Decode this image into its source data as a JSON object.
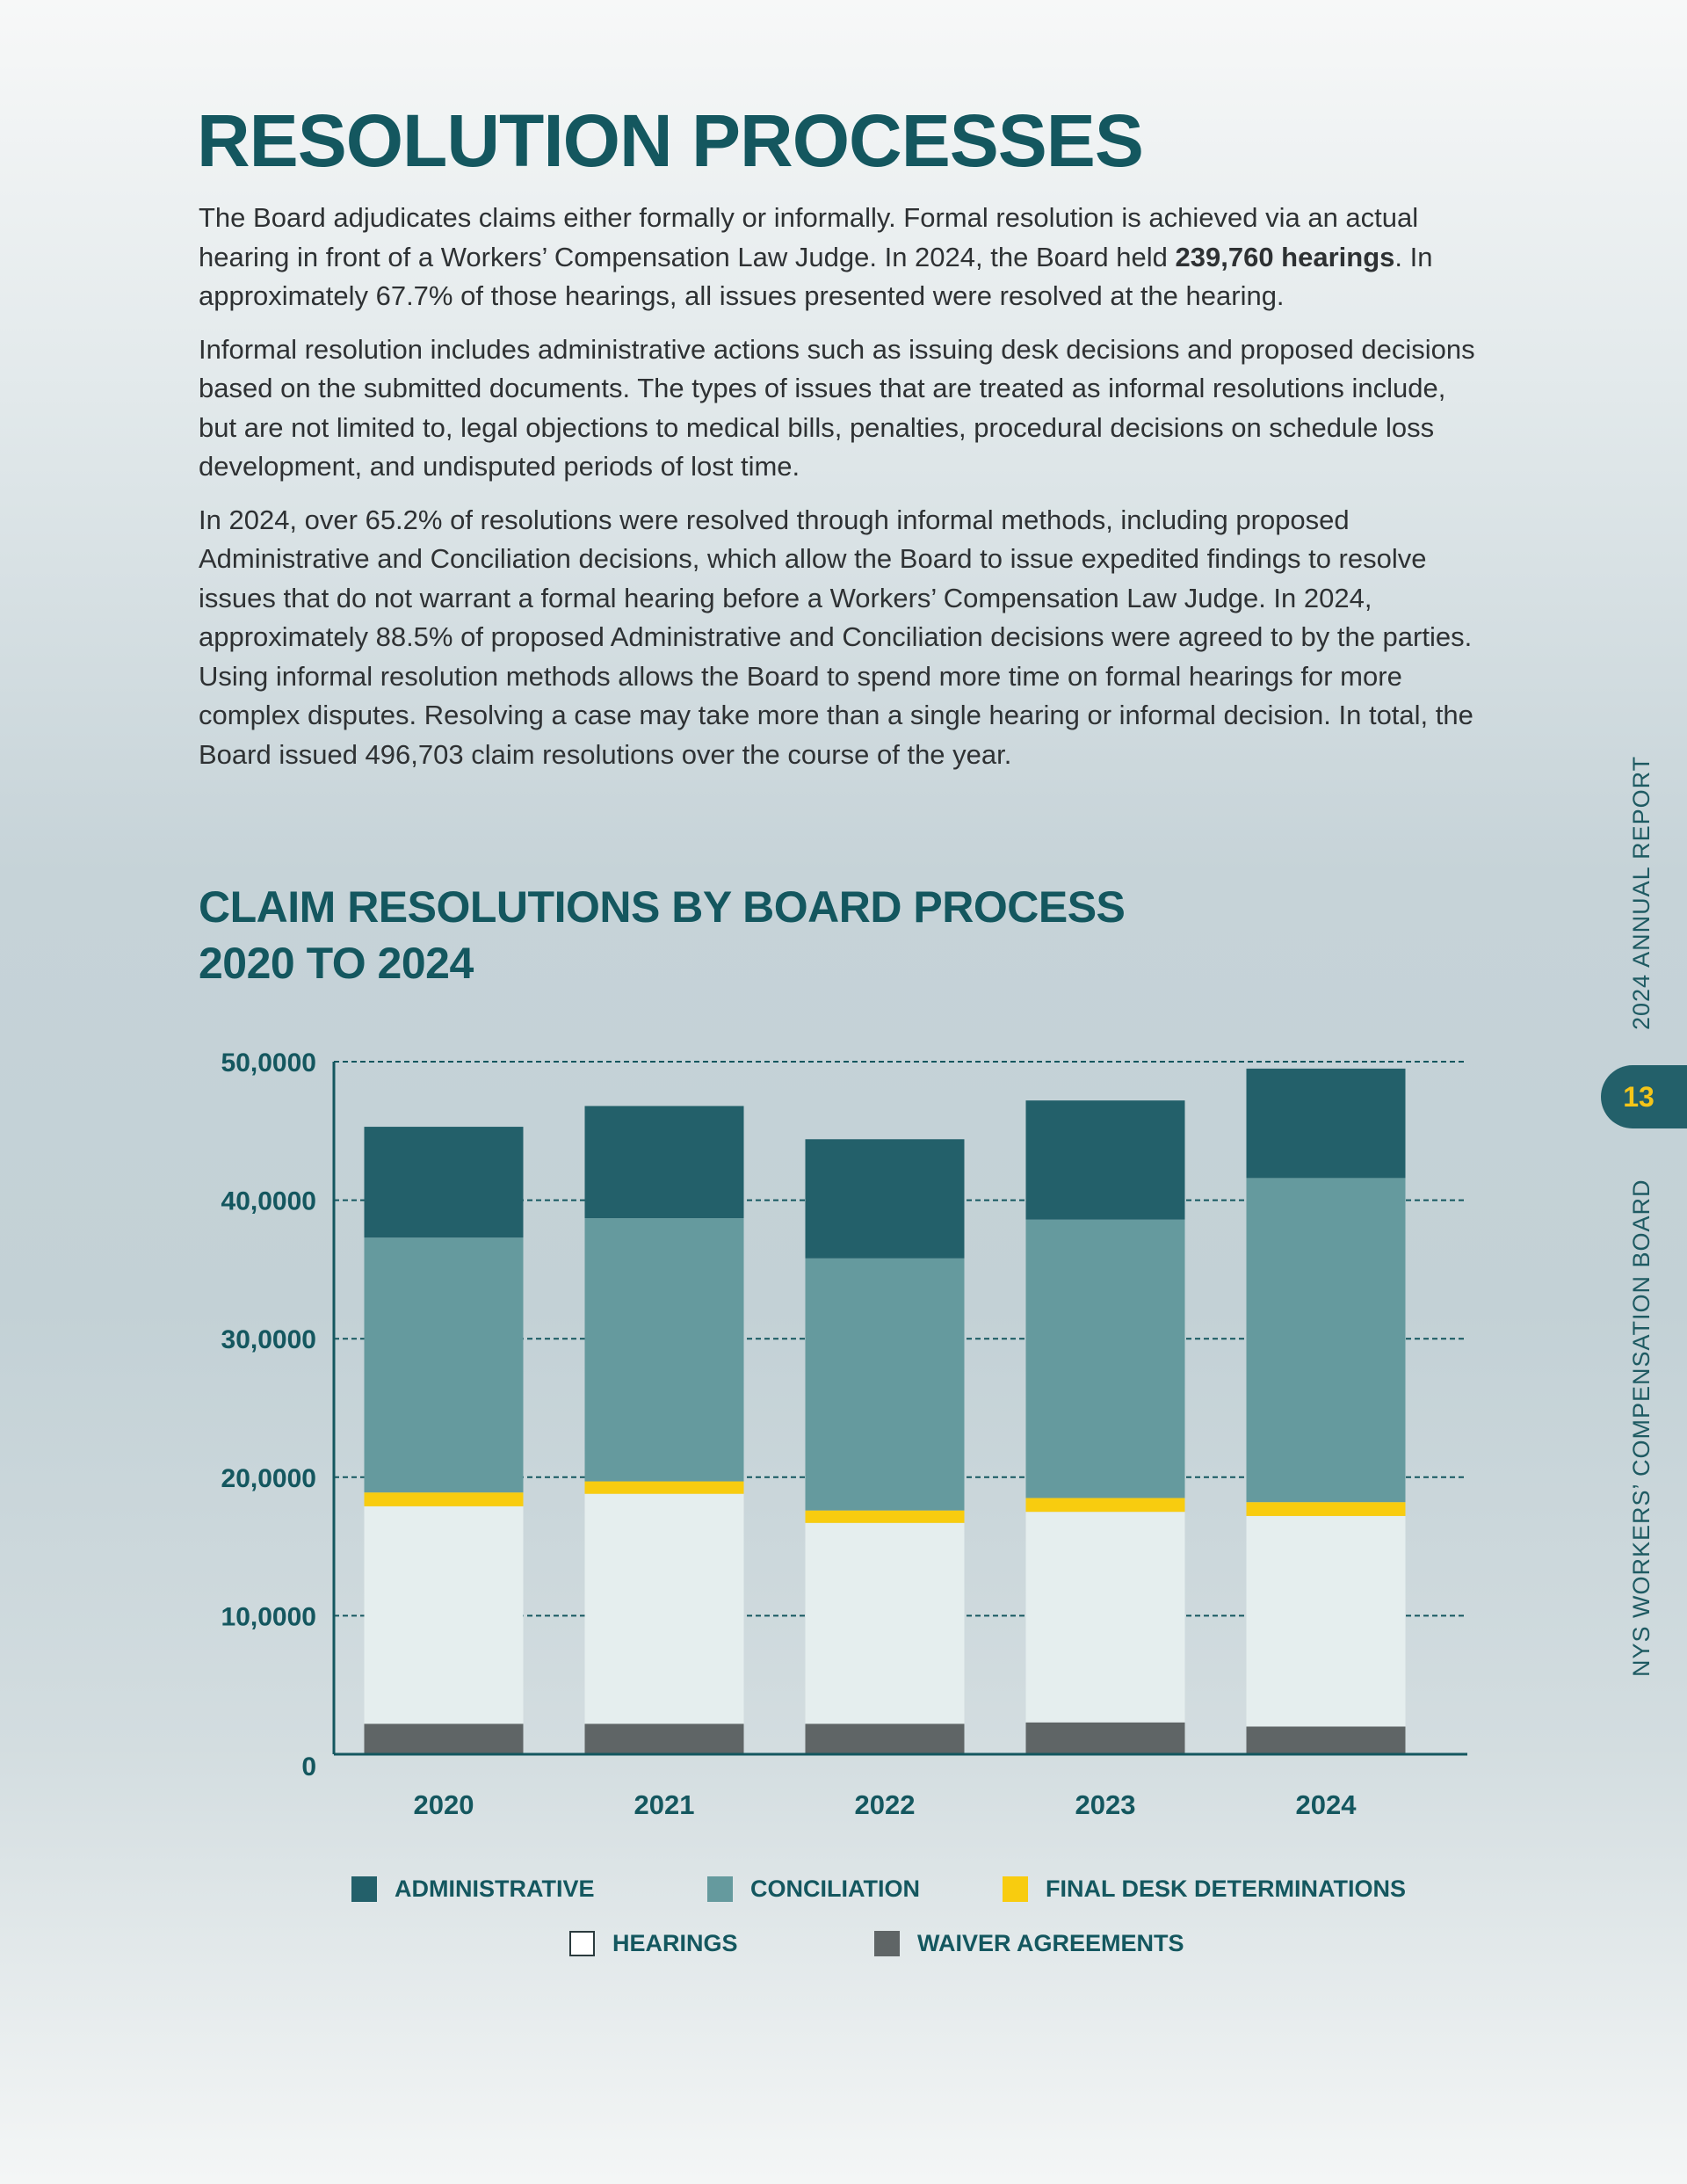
{
  "page": {
    "title": "RESOLUTION PROCESSES",
    "paragraphs": [
      {
        "before": "The Board adjudicates claims either formally or informally. Formal resolution is achieved via an actual hearing in front of a Workers’ Compensation Law Judge. In 2024, the Board held ",
        "bold": "239,760 hearings",
        "after": ". In approximately 67.7% of those hearings, all issues presented were resolved at the hearing."
      },
      {
        "text": "Informal resolution includes administrative actions such as issuing desk decisions and proposed decisions based on the submitted documents. The types of issues that are treated as informal resolutions include, but are not limited to, legal objections to medical bills, penalties, procedural decisions on schedule loss development, and undisputed periods of lost time."
      },
      {
        "text": "In 2024, over 65.2% of resolutions were resolved through informal methods, including proposed Administrative and Conciliation decisions, which allow the Board to issue expedited findings to resolve issues that do not warrant a formal hearing before a Workers’ Compensation Law Judge. In 2024, approximately 88.5% of proposed Administrative and Conciliation decisions were agreed to by the parties. Using informal resolution methods allows the Board to spend more time on formal hearings for more complex disputes. Resolving a case may take more than a single hearing or informal decision. In total, the Board issued 496,703 claim resolutions over the course of the year."
      }
    ],
    "chart_heading_line1": "CLAIM RESOLUTIONS BY BOARD PROCESS",
    "chart_heading_line2": "2020 TO 2024",
    "side_label_report": "2024 ANNUAL REPORT",
    "side_label_board": "NYS WORKERS’ COMPENSATION BOARD",
    "page_number": "13"
  },
  "chart_data": {
    "type": "bar",
    "stacked": true,
    "categories": [
      "2020",
      "2021",
      "2022",
      "2023",
      "2024"
    ],
    "ylim": [
      0,
      50000
    ],
    "yticks": [
      0,
      10000,
      20000,
      30000,
      40000,
      50000
    ],
    "ytick_labels": [
      "0",
      "10,0000",
      "20,0000",
      "30,0000",
      "40,0000",
      "50,0000"
    ],
    "grid": "dashed-horizontal",
    "legend_position": "bottom",
    "series": [
      {
        "name": "WAIVER AGREEMENTS",
        "color": "#5f6566",
        "values": [
          2200,
          2200,
          2200,
          2300,
          2000
        ]
      },
      {
        "name": "HEARINGS",
        "color": "#e5eeee",
        "values": [
          15700,
          16600,
          14500,
          15200,
          15200
        ]
      },
      {
        "name": "FINAL DESK DETERMINATIONS",
        "color": "#f8cc0f",
        "values": [
          1000,
          900,
          900,
          1000,
          1000
        ]
      },
      {
        "name": "CONCILIATION",
        "color": "#659a9e",
        "values": [
          18400,
          19000,
          18200,
          20100,
          23400
        ]
      },
      {
        "name": "ADMINISTRATIVE",
        "color": "#23606a",
        "values": [
          8000,
          8100,
          8600,
          8600,
          7900
        ]
      }
    ],
    "legend_order": [
      "ADMINISTRATIVE",
      "CONCILIATION",
      "FINAL DESK DETERMINATIONS",
      "HEARINGS",
      "WAIVER AGREEMENTS"
    ]
  }
}
